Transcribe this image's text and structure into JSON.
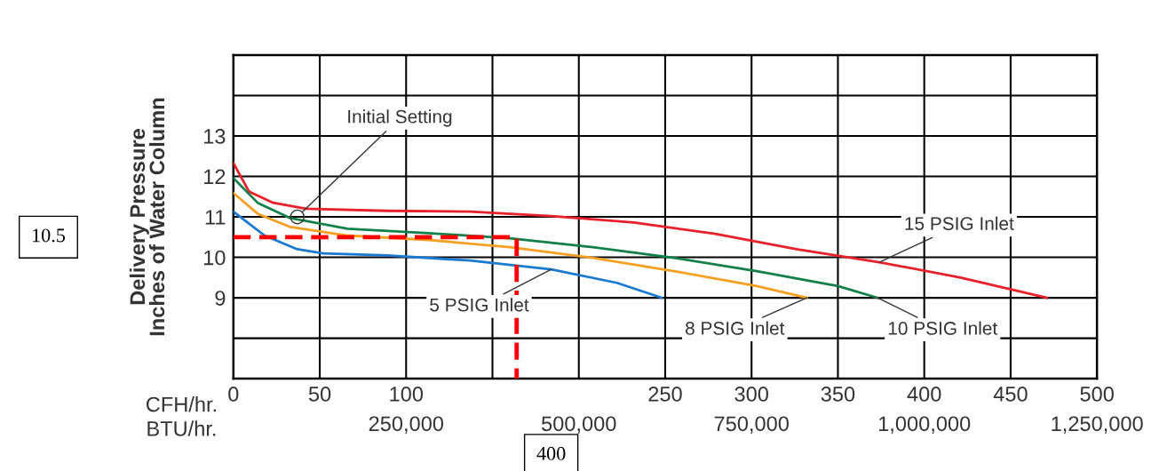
{
  "chart_data": {
    "type": "line",
    "xlabel": "CFH/hr.",
    "x2label": "BTU/hr.",
    "ylabel": "Delivery Pressure\nInches of Water Column",
    "xlim": [
      0,
      500
    ],
    "xticks": [
      0,
      50,
      100,
      {
        "value": 150,
        "label": null
      },
      {
        "value": 200,
        "label": null
      },
      250,
      300,
      350,
      400,
      450,
      500
    ],
    "x2lim": [
      0,
      1250000
    ],
    "x2ticks": [
      {
        "value": 250000,
        "label": "250,000"
      },
      {
        "value": 500000,
        "label": "500,000"
      },
      {
        "value": 750000,
        "label": "750,000"
      },
      {
        "value": 1000000,
        "label": "1,000,000"
      },
      {
        "value": 1250000,
        "label": "1,250,000"
      }
    ],
    "ylim": [
      7,
      15
    ],
    "yticks": [
      {
        "value": 8,
        "label": null
      },
      9,
      10,
      11,
      12,
      13,
      {
        "value": 14,
        "label": null
      }
    ],
    "grid": true,
    "legend": false,
    "marker": "none",
    "line_style": "solid",
    "series": [
      {
        "name": "15 PSIG Inlet",
        "color": "#e8202a",
        "x": [
          0,
          9,
          23,
          42,
          89,
          137,
          184,
          232,
          279,
          326,
          374,
          421,
          471
        ],
        "values": [
          12.33,
          11.63,
          11.35,
          11.2,
          11.15,
          11.13,
          11.02,
          10.86,
          10.58,
          10.2,
          9.88,
          9.5,
          9.0
        ]
      },
      {
        "name": "10 PSIG Inlet",
        "color": "#13804a",
        "x": [
          0,
          14,
          33,
          66,
          113,
          160,
          208,
          255,
          303,
          350,
          373
        ],
        "values": [
          11.96,
          11.35,
          10.97,
          10.71,
          10.6,
          10.47,
          10.25,
          9.99,
          9.66,
          9.29,
          9.0
        ]
      },
      {
        "name": "8 PSIG Inlet",
        "color": "#f5a023",
        "x": [
          0,
          14,
          33,
          66,
          113,
          160,
          208,
          255,
          303,
          332
        ],
        "values": [
          11.59,
          11.08,
          10.75,
          10.54,
          10.43,
          10.25,
          9.99,
          9.66,
          9.29,
          9.0
        ]
      },
      {
        "name": "5 PSIG Inlet",
        "color": "#1a7ad0",
        "x": [
          0,
          18,
          37,
          52,
          89,
          137,
          184,
          222,
          248
        ],
        "values": [
          11.13,
          10.54,
          10.2,
          10.1,
          10.05,
          9.92,
          9.7,
          9.37,
          9.0
        ]
      },
      {
        "color": "#ff0000",
        "line_style": "dashed",
        "x": [
          0,
          164,
          164
        ],
        "values": [
          10.5,
          10.5,
          7
        ]
      }
    ],
    "annotations": [
      {
        "text": "Initial Setting",
        "x": 37,
        "y": 11.0
      },
      "10.5",
      "400"
    ]
  }
}
